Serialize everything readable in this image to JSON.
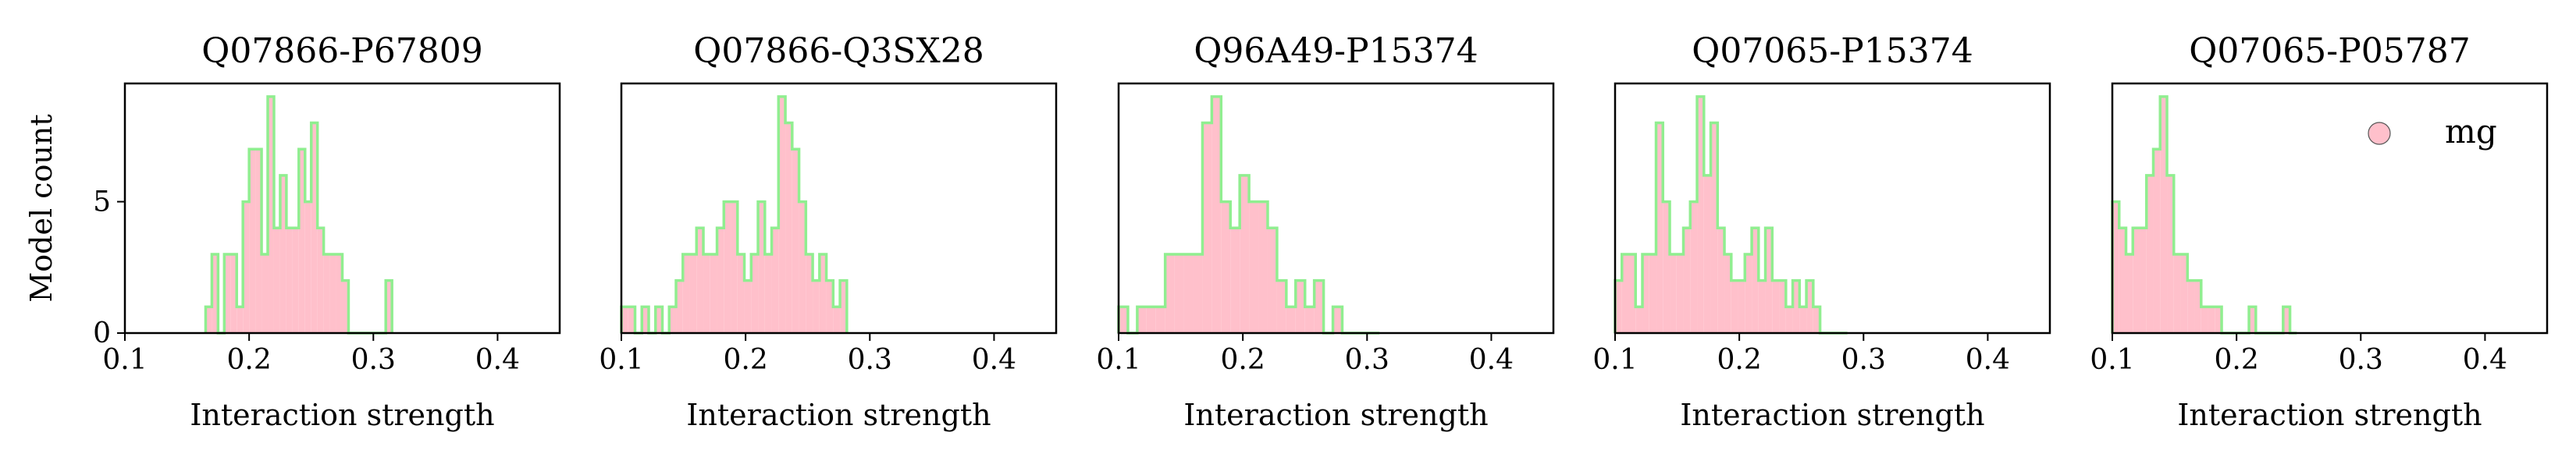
{
  "figure": {
    "ylabel": "Model count",
    "xlabel": "Interaction strength",
    "legend": {
      "label": "mg",
      "placement": "upper-right",
      "marker": "circle"
    },
    "colors": {
      "fill": "#ffc0cb",
      "edge": "#90ee90",
      "axis": "#000000"
    }
  },
  "chart_data": [
    {
      "type": "histogram",
      "title": "Q07866-P67809",
      "xlabel": "Interaction strength",
      "ylabel": "Model count",
      "xlim": [
        0.1,
        0.45
      ],
      "ylim": [
        0,
        9.5
      ],
      "xticks": [
        0.1,
        0.2,
        0.3,
        0.4
      ],
      "xtick_labels": [
        "0.1",
        "0.2",
        "0.3",
        "0.4"
      ],
      "yticks": [
        0,
        5
      ],
      "ytick_labels": [
        "0",
        "5"
      ],
      "bin_width": 0.005,
      "bin_start": 0.165,
      "counts": [
        1,
        3,
        0,
        3,
        3,
        1,
        5,
        7,
        7,
        3,
        9,
        4,
        6,
        4,
        4,
        7,
        5,
        8,
        4,
        3,
        3,
        3,
        2,
        0,
        0,
        0,
        0,
        0,
        0,
        2
      ]
    },
    {
      "type": "histogram",
      "title": "Q07866-Q3SX28",
      "xlabel": "Interaction strength",
      "ylabel": "",
      "xlim": [
        0.1,
        0.45
      ],
      "ylim": [
        0,
        9.5
      ],
      "xticks": [
        0.1,
        0.2,
        0.3,
        0.4
      ],
      "xtick_labels": [
        "0.1",
        "0.2",
        "0.3",
        "0.4"
      ],
      "yticks": [],
      "ytick_labels": [],
      "bin_width": 0.0055,
      "bin_start": 0.1,
      "counts": [
        1,
        1,
        0,
        1,
        0,
        1,
        0,
        1,
        2,
        3,
        3,
        4,
        3,
        3,
        4,
        5,
        5,
        3,
        2,
        3,
        5,
        3,
        4,
        9,
        8,
        7,
        5,
        3,
        2,
        3,
        2,
        1,
        2
      ]
    },
    {
      "type": "histogram",
      "title": "Q96A49-P15374",
      "xlabel": "Interaction strength",
      "ylabel": "",
      "xlim": [
        0.1,
        0.45
      ],
      "ylim": [
        0,
        9.5
      ],
      "xticks": [
        0.1,
        0.2,
        0.3,
        0.4
      ],
      "xtick_labels": [
        "0.1",
        "0.2",
        "0.3",
        "0.4"
      ],
      "yticks": [],
      "ytick_labels": [],
      "bin_width": 0.0075,
      "bin_start": 0.1,
      "counts": [
        1,
        0,
        1,
        1,
        1,
        3,
        3,
        3,
        3,
        8,
        9,
        5,
        4,
        6,
        5,
        5,
        4,
        2,
        1,
        2,
        1,
        2,
        0,
        1,
        0,
        0,
        0,
        0
      ]
    },
    {
      "type": "histogram",
      "title": "Q07065-P15374",
      "xlabel": "Interaction strength",
      "ylabel": "",
      "xlim": [
        0.1,
        0.45
      ],
      "ylim": [
        0,
        9.5
      ],
      "xticks": [
        0.1,
        0.2,
        0.3,
        0.4
      ],
      "xtick_labels": [
        "0.1",
        "0.2",
        "0.3",
        "0.4"
      ],
      "yticks": [],
      "ytick_labels": [],
      "bin_width": 0.0055,
      "bin_start": 0.1,
      "counts": [
        2,
        3,
        3,
        1,
        3,
        3,
        8,
        5,
        3,
        3,
        4,
        5,
        9,
        6,
        8,
        4,
        3,
        2,
        2,
        3,
        4,
        2,
        4,
        2,
        2,
        1,
        2,
        1,
        2,
        1,
        0,
        0,
        0,
        0
      ]
    },
    {
      "type": "histogram",
      "title": "Q07065-P05787",
      "xlabel": "Interaction strength",
      "ylabel": "",
      "xlim": [
        0.1,
        0.45
      ],
      "ylim": [
        0,
        9.5
      ],
      "xticks": [
        0.1,
        0.2,
        0.3,
        0.4
      ],
      "xtick_labels": [
        "0.1",
        "0.2",
        "0.3",
        "0.4"
      ],
      "yticks": [],
      "ytick_labels": [],
      "bin_width": 0.0055,
      "bin_start": 0.1,
      "counts": [
        5,
        4,
        3,
        4,
        4,
        6,
        7,
        9,
        6,
        3,
        3,
        2,
        2,
        1,
        1,
        1,
        0,
        0,
        0,
        0,
        1,
        0,
        0,
        0,
        0,
        1,
        0
      ]
    }
  ]
}
